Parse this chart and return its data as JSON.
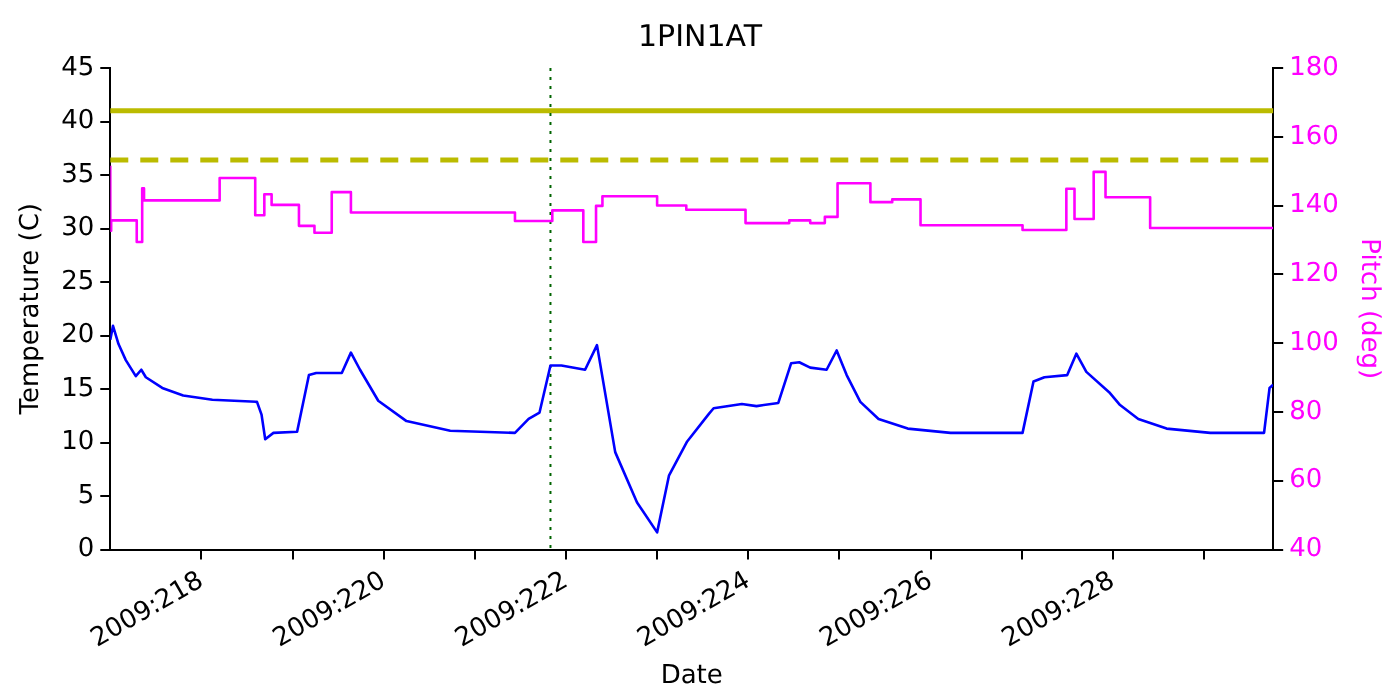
{
  "chart_data": {
    "type": "line",
    "title": "1PIN1AT",
    "xlabel": "Date",
    "ylabel": "Temperature (C)",
    "y2label": "Pitch (deg)",
    "xlim": [
      "2009-08-05T00:00",
      "2009-08-17T18:14"
    ],
    "xticks": [
      {
        "value": "2009-08-06",
        "label": "2009:218"
      },
      {
        "value": "2009-08-07",
        "label": null
      },
      {
        "value": "2009-08-08",
        "label": "2009:220"
      },
      {
        "value": "2009-08-09",
        "label": null
      },
      {
        "value": "2009-08-10",
        "label": "2009:222"
      },
      {
        "value": "2009-08-11",
        "label": null
      },
      {
        "value": "2009-08-12",
        "label": "2009:224"
      },
      {
        "value": "2009-08-13",
        "label": null
      },
      {
        "value": "2009-08-14",
        "label": "2009:226"
      },
      {
        "value": "2009-08-15",
        "label": null
      },
      {
        "value": "2009-08-16",
        "label": "2009:228"
      },
      {
        "value": "2009-08-17",
        "label": null
      }
    ],
    "ylim": [
      0,
      45
    ],
    "yticks": [
      0,
      5,
      10,
      15,
      20,
      25,
      30,
      35,
      40,
      45
    ],
    "y2lim": [
      40,
      180
    ],
    "y2ticks": [
      40,
      60,
      80,
      100,
      120,
      140,
      160,
      180
    ],
    "grid": false,
    "legend": false,
    "marker": "none",
    "series": [
      {
        "type": "line",
        "color": "#0000ff",
        "line_style": "solid",
        "x": [
          "2009-08-05T00:00",
          "2009-08-05T00:43",
          "2009-08-05T02:10",
          "2009-08-05T04:05",
          "2009-08-05T06:43",
          "2009-08-05T08:10",
          "2009-08-05T09:22",
          "2009-08-05T13:41",
          "2009-08-05T19:12",
          "2009-08-06T02:53",
          "2009-08-06T14:38",
          "2009-08-06T15:50",
          "2009-08-06T16:48",
          "2009-08-06T18:58",
          "2009-08-07T01:12",
          "2009-08-07T04:19",
          "2009-08-07T06:14",
          "2009-08-07T12:58",
          "2009-08-07T15:22",
          "2009-08-07T17:46",
          "2009-08-07T22:34",
          "2009-08-08T06:00",
          "2009-08-08T17:31",
          "2009-08-09T10:34",
          "2009-08-09T14:10",
          "2009-08-09T17:02",
          "2009-08-09T19:55",
          "2009-08-09T22:48",
          "2009-08-10T05:02",
          "2009-08-10T08:10",
          "2009-08-10T12:58",
          "2009-08-10T18:43",
          "2009-08-11T00:00",
          "2009-08-11T03:07",
          "2009-08-11T07:55",
          "2009-08-11T13:41",
          "2009-08-11T14:53",
          "2009-08-11T22:19",
          "2009-08-12T02:10",
          "2009-08-12T07:55",
          "2009-08-12T11:17",
          "2009-08-12T13:26",
          "2009-08-12T16:19",
          "2009-08-12T20:38",
          "2009-08-12T23:17",
          "2009-08-13T01:55",
          "2009-08-13T05:31",
          "2009-08-13T10:19",
          "2009-08-13T18:00",
          "2009-08-14T05:17",
          "2009-08-15T00:14",
          "2009-08-15T03:07",
          "2009-08-15T06:00",
          "2009-08-15T12:00",
          "2009-08-15T14:24",
          "2009-08-15T17:02",
          "2009-08-15T23:02",
          "2009-08-16T01:55",
          "2009-08-16T06:43",
          "2009-08-16T14:10",
          "2009-08-17T01:41",
          "2009-08-17T15:50",
          "2009-08-17T17:17",
          "2009-08-17T18:14"
        ],
        "values": [
          19.6,
          20.9,
          19.2,
          17.7,
          16.2,
          16.8,
          16.1,
          15.1,
          14.4,
          14.0,
          13.8,
          12.6,
          10.3,
          10.9,
          11.0,
          16.3,
          16.5,
          16.5,
          18.4,
          16.8,
          13.9,
          12.0,
          11.1,
          10.9,
          12.2,
          12.8,
          17.2,
          17.2,
          16.8,
          19.1,
          9.1,
          4.4,
          1.6,
          6.9,
          10.1,
          12.7,
          13.2,
          13.6,
          13.4,
          13.7,
          17.4,
          17.5,
          17.0,
          16.8,
          18.6,
          16.3,
          13.8,
          12.2,
          11.3,
          10.9,
          10.9,
          15.7,
          16.1,
          16.3,
          18.3,
          16.6,
          14.7,
          13.5,
          12.2,
          11.3,
          10.9,
          10.9,
          15.1,
          15.4
        ]
      },
      {
        "type": "step",
        "axis": "y2",
        "color": "#ff00ff",
        "line_style": "solid",
        "x": [
          "2009-08-05T00:00",
          "2009-08-05T00:14",
          "2009-08-05T06:58",
          "2009-08-05T08:24",
          "2009-08-05T08:53",
          "2009-08-06T04:48",
          "2009-08-06T14:10",
          "2009-08-06T16:34",
          "2009-08-06T18:29",
          "2009-08-07T01:41",
          "2009-08-07T05:46",
          "2009-08-07T10:19",
          "2009-08-07T15:22",
          "2009-08-09T10:34",
          "2009-08-09T20:24",
          "2009-08-10T04:34",
          "2009-08-10T07:55",
          "2009-08-10T09:36",
          "2009-08-11T00:00",
          "2009-08-11T07:41",
          "2009-08-11T23:17",
          "2009-08-12T10:48",
          "2009-08-12T16:19",
          "2009-08-12T20:10",
          "2009-08-12T23:31",
          "2009-08-13T08:10",
          "2009-08-13T13:55",
          "2009-08-13T21:22",
          "2009-08-15T00:14",
          "2009-08-15T11:46",
          "2009-08-15T13:55",
          "2009-08-15T18:58",
          "2009-08-15T22:05",
          "2009-08-16T09:50",
          "2009-08-17T15:50",
          "2009-08-17T18:14"
        ],
        "values": [
          151.6,
          132.7,
          135.7,
          129.4,
          145.0,
          141.5,
          148.0,
          137.2,
          143.3,
          140.2,
          134.1,
          132.1,
          143.9,
          138.0,
          135.5,
          138.6,
          129.4,
          139.9,
          142.7,
          140.0,
          138.8,
          134.9,
          135.7,
          134.9,
          136.7,
          146.5,
          141.0,
          141.8,
          134.3,
          132.9,
          144.9,
          136.1,
          149.8,
          142.4,
          133.5,
          133.5
        ]
      }
    ],
    "ref_lines": [
      {
        "axis": "y",
        "value": 41,
        "color": "#bbbb00",
        "line_style": "solid"
      },
      {
        "axis": "y",
        "value": 36.4,
        "color": "#bbbb00",
        "line_style": "dashed"
      },
      {
        "axis": "x",
        "value": "2009-08-09T19:55",
        "color": "#006400",
        "line_style": "dotted"
      }
    ]
  }
}
